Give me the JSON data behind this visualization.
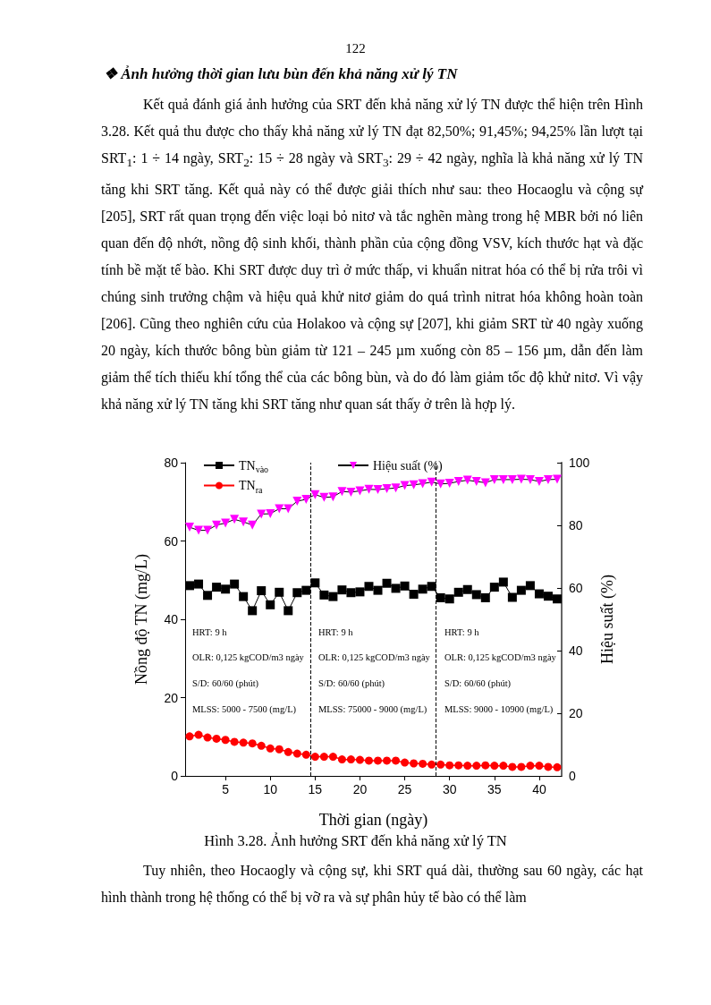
{
  "chart_data": {
    "type": "line",
    "title": "Hình 3.28. Ảnh hưởng SRT đến khả năng xử lý TN",
    "xlabel": "Thời gian (ngày)",
    "ylabel": "Nồng độ TN (mg/L)",
    "y2label": "Hiệu suất (%)",
    "x": [
      1,
      2,
      3,
      4,
      5,
      6,
      7,
      8,
      9,
      10,
      11,
      12,
      13,
      14,
      15,
      16,
      17,
      18,
      19,
      20,
      21,
      22,
      23,
      24,
      25,
      26,
      27,
      28,
      29,
      30,
      31,
      32,
      33,
      34,
      35,
      36,
      37,
      38,
      39,
      40,
      41,
      42
    ],
    "series": [
      {
        "name": "TN$_{vào}$",
        "color": "#000000",
        "marker": "square",
        "values": [
          48.6,
          49.0,
          46.1,
          48.2,
          47.7,
          49.0,
          45.8,
          42.2,
          47.3,
          43.7,
          46.9,
          42.2,
          46.8,
          47.4,
          49.3,
          46.2,
          45.8,
          47.5,
          46.8,
          47.0,
          48.4,
          47.4,
          49.2,
          47.9,
          48.5,
          46.4,
          47.7,
          48.4,
          45.5,
          45.2,
          46.9,
          47.6,
          46.3,
          45.5,
          48.2,
          49.5,
          45.6,
          47.4,
          48.6,
          46.5,
          45.9,
          45.2
        ]
      },
      {
        "name": "TN$_{ra}$",
        "color": "#ff0000",
        "marker": "circle",
        "values": [
          10.1,
          10.5,
          9.8,
          9.5,
          9.2,
          8.7,
          8.5,
          8.3,
          7.7,
          7.0,
          6.8,
          6.1,
          5.7,
          5.4,
          4.9,
          4.9,
          4.9,
          4.2,
          4.2,
          4.1,
          3.9,
          3.9,
          3.9,
          3.9,
          3.4,
          3.2,
          3.1,
          2.9,
          2.9,
          2.7,
          2.7,
          2.6,
          2.6,
          2.7,
          2.6,
          2.6,
          2.3,
          2.3,
          2.6,
          2.6,
          2.3,
          2.2
        ]
      },
      {
        "name": "Hiệu suất (%)",
        "color": "#ff00ff",
        "marker": "triangle",
        "axis": "y2",
        "values": [
          79.4,
          78.4,
          78.4,
          80.1,
          80.7,
          81.9,
          81.1,
          80.1,
          83.6,
          83.7,
          85.3,
          85.3,
          87.7,
          88.3,
          89.8,
          88.9,
          89.1,
          90.8,
          90.6,
          91.0,
          91.5,
          91.4,
          91.7,
          91.9,
          92.7,
          92.9,
          93.3,
          93.8,
          93.2,
          93.4,
          94.0,
          94.4,
          94.0,
          93.6,
          94.6,
          94.6,
          94.6,
          94.7,
          94.6,
          94.0,
          94.6,
          94.7
        ]
      }
    ],
    "xlim": [
      0.5,
      42.5
    ],
    "xticks": [
      5,
      10,
      15,
      20,
      25,
      30,
      35,
      40
    ],
    "ylim": [
      0,
      80
    ],
    "yticks": [
      0,
      20,
      40,
      60,
      80
    ],
    "y2lim": [
      0,
      100
    ],
    "y2ticks": [
      0,
      20,
      40,
      60,
      80,
      100
    ],
    "ref_lines": [
      {
        "axis": "x",
        "value": 14.5,
        "line_style": "dashed",
        "color": "#000000"
      },
      {
        "axis": "x",
        "value": 28.5,
        "line_style": "dashed",
        "color": "#000000"
      }
    ],
    "legend": "top left",
    "grid": false,
    "annotations": [
      "122",
      "❖ Ảnh hưởng thời gian lưu bùn đến khả năng xử lý TN",
      "Kết quả đánh giá ảnh hưởng của SRT đến khả năng xử lý TN được thể hiện trên Hình 3.28. Kết quả thu được cho thấy khả năng xử lý TN đạt 82,50%; 91,45%; 94,25% lần lượt tại SRT$_{1}$: 1 ÷ 14 ngày, SRT$_{2}$: 15 ÷ 28 ngày và SRT$_{3}$: 29 ÷ 42 ngày, nghĩa là khả năng xử lý TN tăng khi SRT tăng. Kết quả này có thể được giải thích như sau: theo Hocaoglu và cộng sự [205], SRT rất quan trọng đến việc loại bỏ nitơ và tắc nghẽn màng trong hệ MBR bởi nó liên quan đến độ nhớt, nồng độ sinh khối, thành phần của cộng đồng VSV, kích thước hạt và đặc tính bề mặt tế bào. Khi SRT được duy trì ở mức thấp, vi khuẩn nitrat hóa có thể bị rửa trôi vì chúng sinh trưởng chậm và hiệu quả khử nitơ giảm do quá trình nitrat hóa không hoàn toàn [206]. Cũng theo nghiên cứu của Holakoo và cộng sự [207], khi giảm SRT từ 40 ngày xuống 20 ngày, kích thước bông bùn giảm từ 121 – 245 µm xuống còn 85 – 156 µm, dẫn đến làm giảm thể tích thiếu khí tổng thể của các bông bùn, và do đó làm giảm tốc độ khử nitơ. Vì vậy khả năng xử lý TN tăng khi SRT tăng như quan sát thấy ở trên là hợp lý.",
      "Tuy nhiên, theo Hocaogly và cộng sự, khi SRT quá dài, thường sau 60 ngày, các hạt hình thành trong hệ thống có thể bị vỡ ra và sự phân hủy tế bào có thể làm",
      "HRT: 9 h",
      "OLR: 0,125 kgCOD/m3 ngày",
      "S/D: 60/60 (phút)",
      "MLSS: 5000 - 7500 (mg/L)",
      "HRT: 9 h",
      "OLR: 0,125 kgCOD/m3 ngày",
      "S/D: 60/60 (phút)",
      "MLSS: 75000 - 9000 (mg/L)",
      "HRT: 9 h",
      "OLR: 0,125 kgCOD/m3 ngày",
      "S/D: 60/60 (phút)",
      "MLSS: 9000 - 10900 (mg/L)"
    ]
  }
}
